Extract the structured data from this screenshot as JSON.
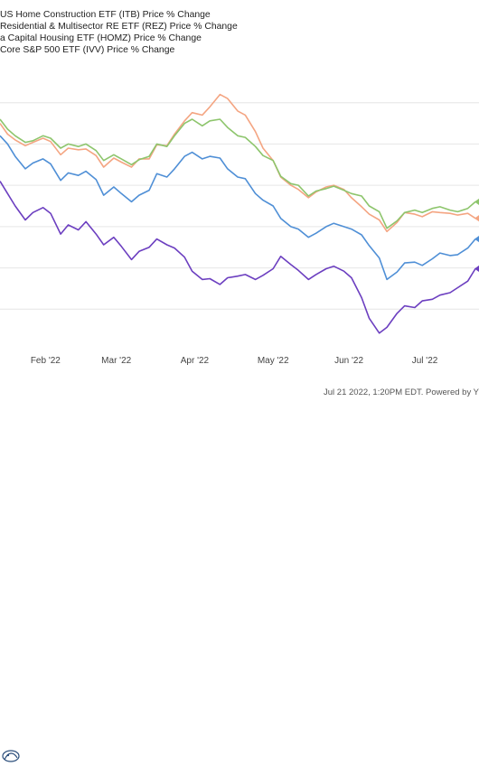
{
  "legend": [
    {
      "label": "US Home Construction ETF (ITB) Price % Change",
      "color": "#f4a582"
    },
    {
      "label": "Residential & Multisector RE ETF (REZ) Price % Change",
      "color": "#8dc56c"
    },
    {
      "label": "a Capital Housing ETF (HOMZ) Price % Change",
      "color": "#4f8fd6"
    },
    {
      "label": "Core S&P 500 ETF (IVV) Price % Change",
      "color": "#6c3fc0"
    }
  ],
  "footer": {
    "text": "Jul 21 2022, 1:20PM EDT. Powered by Y"
  },
  "icons": {
    "logo": "ycharts-logo-icon"
  },
  "chart_data": {
    "type": "line",
    "x_ticks": [
      "Feb '22",
      "Mar '22",
      "Apr '22",
      "May '22",
      "Jun '22",
      "Jul '22"
    ],
    "x_range": [
      "2022-01-14",
      "2022-07-21"
    ],
    "grid": true,
    "series": [
      {
        "name": "US Home Construction ETF (ITB) Price % Change",
        "color": "#f4a582",
        "values": [
          [
            "2022-01-14",
            -2.5
          ],
          [
            "2022-01-17",
            -3.8
          ],
          [
            "2022-01-20",
            -4.5
          ],
          [
            "2022-01-24",
            -5.2
          ],
          [
            "2022-01-27",
            -4.8
          ],
          [
            "2022-01-31",
            -4.3
          ],
          [
            "2022-02-03",
            -4.7
          ],
          [
            "2022-02-07",
            -6.3
          ],
          [
            "2022-02-10",
            -5.5
          ],
          [
            "2022-02-14",
            -5.7
          ],
          [
            "2022-02-17",
            -5.6
          ],
          [
            "2022-02-21",
            -6.4
          ],
          [
            "2022-02-24",
            -7.8
          ],
          [
            "2022-02-28",
            -6.7
          ],
          [
            "2022-03-03",
            -7.2
          ],
          [
            "2022-03-07",
            -7.8
          ],
          [
            "2022-03-10",
            -6.8
          ],
          [
            "2022-03-14",
            -6.8
          ],
          [
            "2022-03-17",
            -5.1
          ],
          [
            "2022-03-21",
            -5.2
          ],
          [
            "2022-03-24",
            -3.8
          ],
          [
            "2022-03-28",
            -2.2
          ],
          [
            "2022-03-31",
            -1.2
          ],
          [
            "2022-04-04",
            -1.5
          ],
          [
            "2022-04-07",
            -0.5
          ],
          [
            "2022-04-11",
            1.0
          ],
          [
            "2022-04-14",
            0.5
          ],
          [
            "2022-04-18",
            -1.0
          ],
          [
            "2022-04-21",
            -1.5
          ],
          [
            "2022-04-25",
            -3.5
          ],
          [
            "2022-04-28",
            -5.5
          ],
          [
            "2022-05-02",
            -7.0
          ],
          [
            "2022-05-05",
            -9.0
          ],
          [
            "2022-05-09",
            -10.0
          ],
          [
            "2022-05-12",
            -10.5
          ],
          [
            "2022-05-16",
            -11.5
          ],
          [
            "2022-05-19",
            -10.8
          ],
          [
            "2022-05-23",
            -10.2
          ],
          [
            "2022-05-26",
            -10.0
          ],
          [
            "2022-05-30",
            -10.5
          ],
          [
            "2022-06-02",
            -11.5
          ],
          [
            "2022-06-06",
            -12.6
          ],
          [
            "2022-06-09",
            -13.5
          ],
          [
            "2022-06-13",
            -14.2
          ],
          [
            "2022-06-16",
            -15.6
          ],
          [
            "2022-06-20",
            -14.5
          ],
          [
            "2022-06-23",
            -13.3
          ],
          [
            "2022-06-27",
            -13.5
          ],
          [
            "2022-06-30",
            -13.8
          ],
          [
            "2022-07-04",
            -13.2
          ],
          [
            "2022-07-07",
            -13.3
          ],
          [
            "2022-07-11",
            -13.4
          ],
          [
            "2022-07-14",
            -13.6
          ],
          [
            "2022-07-18",
            -13.4
          ],
          [
            "2022-07-21",
            -14.0
          ]
        ]
      },
      {
        "name": "Residential & Multisector RE ETF (REZ) Price % Change",
        "color": "#8dc56c",
        "values": [
          [
            "2022-01-14",
            -2.0
          ],
          [
            "2022-01-17",
            -3.2
          ],
          [
            "2022-01-20",
            -4.0
          ],
          [
            "2022-01-24",
            -4.8
          ],
          [
            "2022-01-27",
            -4.6
          ],
          [
            "2022-01-31",
            -4.0
          ],
          [
            "2022-02-03",
            -4.3
          ],
          [
            "2022-02-07",
            -5.5
          ],
          [
            "2022-02-10",
            -5.0
          ],
          [
            "2022-02-14",
            -5.3
          ],
          [
            "2022-02-17",
            -5.0
          ],
          [
            "2022-02-21",
            -5.8
          ],
          [
            "2022-02-24",
            -7.0
          ],
          [
            "2022-02-28",
            -6.3
          ],
          [
            "2022-03-03",
            -6.8
          ],
          [
            "2022-03-07",
            -7.5
          ],
          [
            "2022-03-10",
            -6.9
          ],
          [
            "2022-03-14",
            -6.5
          ],
          [
            "2022-03-17",
            -5.0
          ],
          [
            "2022-03-21",
            -5.3
          ],
          [
            "2022-03-24",
            -4.0
          ],
          [
            "2022-03-28",
            -2.5
          ],
          [
            "2022-03-31",
            -2.0
          ],
          [
            "2022-04-04",
            -2.8
          ],
          [
            "2022-04-07",
            -2.2
          ],
          [
            "2022-04-11",
            -2.0
          ],
          [
            "2022-04-14",
            -3.0
          ],
          [
            "2022-04-18",
            -4.0
          ],
          [
            "2022-04-21",
            -4.2
          ],
          [
            "2022-04-25",
            -5.3
          ],
          [
            "2022-04-28",
            -6.4
          ],
          [
            "2022-05-02",
            -7.0
          ],
          [
            "2022-05-05",
            -8.9
          ],
          [
            "2022-05-09",
            -9.8
          ],
          [
            "2022-05-12",
            -10.0
          ],
          [
            "2022-05-16",
            -11.3
          ],
          [
            "2022-05-19",
            -10.7
          ],
          [
            "2022-05-23",
            -10.4
          ],
          [
            "2022-05-26",
            -10.1
          ],
          [
            "2022-05-30",
            -10.6
          ],
          [
            "2022-06-02",
            -11.0
          ],
          [
            "2022-06-06",
            -11.3
          ],
          [
            "2022-06-09",
            -12.5
          ],
          [
            "2022-06-13",
            -13.2
          ],
          [
            "2022-06-16",
            -15.2
          ],
          [
            "2022-06-20",
            -14.3
          ],
          [
            "2022-06-23",
            -13.3
          ],
          [
            "2022-06-27",
            -13.0
          ],
          [
            "2022-06-30",
            -13.3
          ],
          [
            "2022-07-04",
            -12.8
          ],
          [
            "2022-07-07",
            -12.6
          ],
          [
            "2022-07-11",
            -13.0
          ],
          [
            "2022-07-14",
            -13.2
          ],
          [
            "2022-07-18",
            -12.8
          ],
          [
            "2022-07-21",
            -12.0
          ]
        ]
      },
      {
        "name": "a Capital Housing ETF (HOMZ) Price % Change",
        "color": "#4f8fd6",
        "values": [
          [
            "2022-01-14",
            -4.0
          ],
          [
            "2022-01-17",
            -5.0
          ],
          [
            "2022-01-20",
            -6.5
          ],
          [
            "2022-01-24",
            -8.0
          ],
          [
            "2022-01-27",
            -7.3
          ],
          [
            "2022-01-31",
            -6.8
          ],
          [
            "2022-02-03",
            -7.4
          ],
          [
            "2022-02-07",
            -9.4
          ],
          [
            "2022-02-10",
            -8.5
          ],
          [
            "2022-02-14",
            -8.8
          ],
          [
            "2022-02-17",
            -8.3
          ],
          [
            "2022-02-21",
            -9.3
          ],
          [
            "2022-02-24",
            -11.2
          ],
          [
            "2022-02-28",
            -10.2
          ],
          [
            "2022-03-03",
            -11.0
          ],
          [
            "2022-03-07",
            -12.0
          ],
          [
            "2022-03-10",
            -11.2
          ],
          [
            "2022-03-14",
            -10.6
          ],
          [
            "2022-03-17",
            -8.6
          ],
          [
            "2022-03-21",
            -9.0
          ],
          [
            "2022-03-24",
            -8.0
          ],
          [
            "2022-03-28",
            -6.5
          ],
          [
            "2022-03-31",
            -6.0
          ],
          [
            "2022-04-04",
            -6.8
          ],
          [
            "2022-04-07",
            -6.5
          ],
          [
            "2022-04-11",
            -6.7
          ],
          [
            "2022-04-14",
            -8.0
          ],
          [
            "2022-04-18",
            -9.0
          ],
          [
            "2022-04-21",
            -9.2
          ],
          [
            "2022-04-25",
            -11.0
          ],
          [
            "2022-04-28",
            -11.8
          ],
          [
            "2022-05-02",
            -12.5
          ],
          [
            "2022-05-05",
            -14.0
          ],
          [
            "2022-05-09",
            -15.0
          ],
          [
            "2022-05-12",
            -15.3
          ],
          [
            "2022-05-16",
            -16.3
          ],
          [
            "2022-05-19",
            -15.8
          ],
          [
            "2022-05-23",
            -15.0
          ],
          [
            "2022-05-26",
            -14.6
          ],
          [
            "2022-05-30",
            -15.0
          ],
          [
            "2022-06-02",
            -15.3
          ],
          [
            "2022-06-06",
            -16.0
          ],
          [
            "2022-06-09",
            -17.3
          ],
          [
            "2022-06-13",
            -18.8
          ],
          [
            "2022-06-16",
            -21.4
          ],
          [
            "2022-06-20",
            -20.5
          ],
          [
            "2022-06-23",
            -19.4
          ],
          [
            "2022-06-27",
            -19.3
          ],
          [
            "2022-06-30",
            -19.7
          ],
          [
            "2022-07-04",
            -18.9
          ],
          [
            "2022-07-07",
            -18.2
          ],
          [
            "2022-07-11",
            -18.5
          ],
          [
            "2022-07-14",
            -18.4
          ],
          [
            "2022-07-18",
            -17.6
          ],
          [
            "2022-07-21",
            -16.5
          ]
        ]
      },
      {
        "name": "Core S&P 500 ETF (IVV) Price % Change",
        "color": "#6c3fc0",
        "values": [
          [
            "2022-01-14",
            -9.5
          ],
          [
            "2022-01-17",
            -11.0
          ],
          [
            "2022-01-20",
            -12.5
          ],
          [
            "2022-01-24",
            -14.2
          ],
          [
            "2022-01-27",
            -13.3
          ],
          [
            "2022-01-31",
            -12.7
          ],
          [
            "2022-02-03",
            -13.4
          ],
          [
            "2022-02-07",
            -15.9
          ],
          [
            "2022-02-10",
            -14.8
          ],
          [
            "2022-02-14",
            -15.4
          ],
          [
            "2022-02-17",
            -14.4
          ],
          [
            "2022-02-21",
            -15.9
          ],
          [
            "2022-02-24",
            -17.2
          ],
          [
            "2022-02-28",
            -16.3
          ],
          [
            "2022-03-03",
            -17.4
          ],
          [
            "2022-03-07",
            -19.0
          ],
          [
            "2022-03-10",
            -18.0
          ],
          [
            "2022-03-14",
            -17.5
          ],
          [
            "2022-03-17",
            -16.5
          ],
          [
            "2022-03-21",
            -17.2
          ],
          [
            "2022-03-24",
            -17.6
          ],
          [
            "2022-03-28",
            -18.7
          ],
          [
            "2022-03-31",
            -20.4
          ],
          [
            "2022-04-04",
            -21.4
          ],
          [
            "2022-04-07",
            -21.3
          ],
          [
            "2022-04-11",
            -22.0
          ],
          [
            "2022-04-14",
            -21.2
          ],
          [
            "2022-04-18",
            -21.0
          ],
          [
            "2022-04-21",
            -20.8
          ],
          [
            "2022-04-25",
            -21.4
          ],
          [
            "2022-04-28",
            -20.9
          ],
          [
            "2022-05-02",
            -20.1
          ],
          [
            "2022-05-05",
            -18.6
          ],
          [
            "2022-05-09",
            -19.6
          ],
          [
            "2022-05-12",
            -20.3
          ],
          [
            "2022-05-16",
            -21.4
          ],
          [
            "2022-05-19",
            -20.8
          ],
          [
            "2022-05-23",
            -20.1
          ],
          [
            "2022-05-26",
            -19.8
          ],
          [
            "2022-05-30",
            -20.4
          ],
          [
            "2022-06-02",
            -21.2
          ],
          [
            "2022-06-06",
            -23.6
          ],
          [
            "2022-06-09",
            -26.1
          ],
          [
            "2022-06-13",
            -27.9
          ],
          [
            "2022-06-16",
            -27.2
          ],
          [
            "2022-06-20",
            -25.5
          ],
          [
            "2022-06-23",
            -24.6
          ],
          [
            "2022-06-27",
            -24.8
          ],
          [
            "2022-06-30",
            -24.0
          ],
          [
            "2022-07-04",
            -23.8
          ],
          [
            "2022-07-07",
            -23.3
          ],
          [
            "2022-07-11",
            -23.0
          ],
          [
            "2022-07-14",
            -22.4
          ],
          [
            "2022-07-18",
            -21.6
          ],
          [
            "2022-07-21",
            -20.1
          ]
        ]
      }
    ]
  }
}
